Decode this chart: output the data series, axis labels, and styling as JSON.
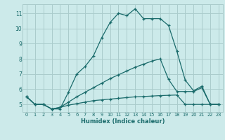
{
  "xlabel": "Humidex (Indice chaleur)",
  "bg_color": "#cceaea",
  "grid_color": "#aacccc",
  "line_color": "#1a6b6b",
  "x_ticks": [
    0,
    1,
    2,
    3,
    4,
    5,
    6,
    7,
    8,
    9,
    10,
    11,
    12,
    13,
    14,
    15,
    16,
    17,
    18,
    19,
    20,
    21,
    22,
    23
  ],
  "y_ticks": [
    5,
    6,
    7,
    8,
    9,
    10,
    11
  ],
  "ylim": [
    4.5,
    11.6
  ],
  "xlim": [
    -0.5,
    23.5
  ],
  "line1_x": [
    0,
    1,
    2,
    3,
    4,
    5,
    6,
    7,
    8,
    9,
    10,
    11,
    12,
    13,
    14,
    15,
    16,
    17,
    18,
    19,
    20,
    21,
    22,
    23
  ],
  "line1_y": [
    5.5,
    5.0,
    5.0,
    4.7,
    4.7,
    5.8,
    7.0,
    7.5,
    8.2,
    9.4,
    10.4,
    11.0,
    10.85,
    11.3,
    10.65,
    10.65,
    10.65,
    10.2,
    8.5,
    6.6,
    5.9,
    6.2,
    5.0,
    5.0
  ],
  "line2_x": [
    0,
    1,
    2,
    3,
    4,
    5,
    6,
    7,
    8,
    9,
    10,
    11,
    12,
    13,
    14,
    15,
    16,
    17,
    18,
    19,
    20,
    21,
    22,
    23
  ],
  "line2_y": [
    5.5,
    5.0,
    5.0,
    4.7,
    4.8,
    5.15,
    5.5,
    5.8,
    6.1,
    6.4,
    6.7,
    6.95,
    7.2,
    7.45,
    7.65,
    7.85,
    8.0,
    6.65,
    5.85,
    5.85,
    5.85,
    6.1,
    5.0,
    5.0
  ],
  "line3_x": [
    0,
    1,
    2,
    3,
    4,
    5,
    6,
    7,
    8,
    9,
    10,
    11,
    12,
    13,
    14,
    15,
    16,
    17,
    18,
    19,
    20,
    21,
    22,
    23
  ],
  "line3_y": [
    5.5,
    5.0,
    5.0,
    4.7,
    4.8,
    4.95,
    5.05,
    5.15,
    5.25,
    5.3,
    5.35,
    5.4,
    5.45,
    5.5,
    5.52,
    5.55,
    5.58,
    5.6,
    5.62,
    5.0,
    5.0,
    5.0,
    5.0,
    5.0
  ]
}
